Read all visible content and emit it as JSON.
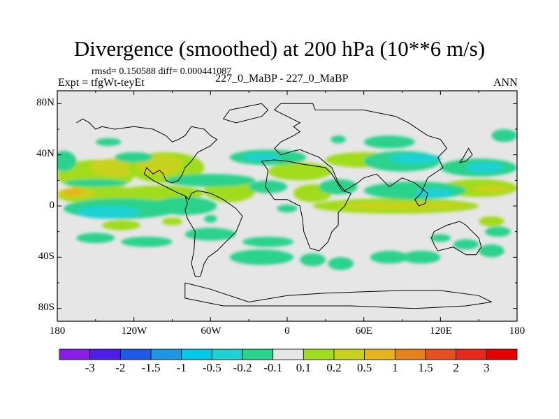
{
  "title": "Divergence (smoothed) at 200 hPa (10**6 m/s)",
  "stats": "rmsd= 0.150588 diff= 0.000441087",
  "expt_label": "Expt = tfgWt-teyEt",
  "subtitle": "227_0_MaBP - 227_0_MaBP",
  "season": "ANN",
  "lat_labels": [
    "80N",
    "40N",
    "0",
    "40S",
    "80S"
  ],
  "lon_labels": [
    "180",
    "120W",
    "60W",
    "0",
    "60E",
    "120E",
    "180"
  ],
  "colorbar": {
    "labels": [
      "-3",
      "-2",
      "-1.5",
      "-1",
      "-0.5",
      "-0.2",
      "-0.1",
      "0.1",
      "0.2",
      "0.5",
      "1",
      "1.5",
      "2",
      "3"
    ],
    "colors": [
      "#8a1ee6",
      "#4e1ee6",
      "#1e5ae6",
      "#1e96e6",
      "#00c8e6",
      "#1ed2d2",
      "#2ad28c",
      "#e6e6e6",
      "#a0dc1e",
      "#c8d21e",
      "#e6b41e",
      "#e6821e",
      "#e6501e",
      "#e6281e",
      "#e60000"
    ]
  },
  "map": {
    "background": "#e6e6e6",
    "colors": {
      "neg_weak": "#2ad28c",
      "neg_mid": "#1ed2d2",
      "neg_strong": "#00c8e6",
      "pos_weak": "#a0dc1e",
      "pos_mid": "#c8d21e",
      "pos_strong": "#e6b41e"
    },
    "patches": [
      {
        "level": "pos_weak",
        "lon": -150,
        "lat": 24,
        "rlon": 30,
        "rlat": 12
      },
      {
        "level": "pos_mid",
        "lon": -135,
        "lat": 30,
        "rlon": 20,
        "rlat": 7
      },
      {
        "level": "pos_weak",
        "lon": -95,
        "lat": 30,
        "rlon": 30,
        "rlat": 12
      },
      {
        "level": "pos_mid",
        "lon": -100,
        "lat": 32,
        "rlon": 18,
        "rlat": 8
      },
      {
        "level": "pos_weak",
        "lon": -140,
        "lat": 8,
        "rlon": 40,
        "rlat": 7
      },
      {
        "level": "pos_mid",
        "lon": -165,
        "lat": 10,
        "rlon": 15,
        "rlat": 4
      },
      {
        "level": "pos_strong",
        "lon": -168,
        "lat": 11,
        "rlon": 8,
        "rlat": 3
      },
      {
        "level": "pos_weak",
        "lon": -100,
        "lat": 10,
        "rlon": 35,
        "rlat": 6
      },
      {
        "level": "pos_weak",
        "lon": -45,
        "lat": 12,
        "rlon": 20,
        "rlat": 9
      },
      {
        "level": "pos_weak",
        "lon": 10,
        "lat": 27,
        "rlon": 25,
        "rlat": 7
      },
      {
        "level": "pos_weak",
        "lon": 20,
        "lat": 10,
        "rlon": 15,
        "rlat": 7
      },
      {
        "level": "pos_weak",
        "lon": 85,
        "lat": 0,
        "rlon": 65,
        "rlat": 6
      },
      {
        "level": "pos_mid",
        "lon": 90,
        "lat": 0,
        "rlon": 50,
        "rlat": 3
      },
      {
        "level": "pos_weak",
        "lon": 150,
        "lat": 14,
        "rlon": 30,
        "rlat": 7
      },
      {
        "level": "pos_mid",
        "lon": 160,
        "lat": 13,
        "rlon": 15,
        "rlat": 3
      },
      {
        "level": "pos_weak",
        "lon": 160,
        "lat": -12,
        "rlon": 10,
        "rlat": 4
      },
      {
        "level": "pos_weak",
        "lon": -90,
        "lat": -12,
        "rlon": 8,
        "rlat": 3
      },
      {
        "level": "pos_weak",
        "lon": -130,
        "lat": -15,
        "rlon": 15,
        "rlat": 4
      },
      {
        "level": "pos_weak",
        "lon": 60,
        "lat": 36,
        "rlon": 30,
        "rlat": 6
      },
      {
        "level": "neg_weak",
        "lon": -130,
        "lat": -2,
        "rlon": 45,
        "rlat": 8
      },
      {
        "level": "neg_mid",
        "lon": -140,
        "lat": -5,
        "rlon": 25,
        "rlat": 5
      },
      {
        "level": "neg_strong",
        "lon": -80,
        "lat": -2,
        "rlon": 15,
        "rlat": 4
      },
      {
        "level": "neg_weak",
        "lon": -80,
        "lat": 0,
        "rlon": 25,
        "rlat": 7
      },
      {
        "level": "neg_weak",
        "lon": -150,
        "lat": -25,
        "rlon": 15,
        "rlat": 4
      },
      {
        "level": "neg_weak",
        "lon": -110,
        "lat": -28,
        "rlon": 20,
        "rlat": 4
      },
      {
        "level": "neg_weak",
        "lon": -60,
        "lat": -22,
        "rlon": 20,
        "rlat": 5
      },
      {
        "level": "neg_weak",
        "lon": -15,
        "lat": -28,
        "rlon": 20,
        "rlat": 4
      },
      {
        "level": "neg_weak",
        "lon": -20,
        "lat": -40,
        "rlon": 25,
        "rlat": 6
      },
      {
        "level": "neg_weak",
        "lon": 20,
        "lat": -42,
        "rlon": 10,
        "rlat": 5
      },
      {
        "level": "neg_weak",
        "lon": 42,
        "lat": -45,
        "rlon": 10,
        "rlat": 5
      },
      {
        "level": "neg_weak",
        "lon": 80,
        "lat": -40,
        "rlon": 15,
        "rlat": 5
      },
      {
        "level": "neg_weak",
        "lon": 105,
        "lat": -40,
        "rlon": 15,
        "rlat": 5
      },
      {
        "level": "neg_weak",
        "lon": 140,
        "lat": -30,
        "rlon": 10,
        "rlat": 4
      },
      {
        "level": "neg_weak",
        "lon": 160,
        "lat": -35,
        "rlon": 10,
        "rlat": 5
      },
      {
        "level": "neg_weak",
        "lon": 165,
        "lat": -20,
        "rlon": 10,
        "rlat": 4
      },
      {
        "level": "neg_weak",
        "lon": 120,
        "lat": -25,
        "rlon": 8,
        "rlat": 3
      },
      {
        "level": "neg_weak",
        "lon": -175,
        "lat": 35,
        "rlon": 10,
        "rlat": 8
      },
      {
        "level": "neg_weak",
        "lon": -120,
        "lat": 38,
        "rlon": 15,
        "rlat": 4
      },
      {
        "level": "neg_weak",
        "lon": -150,
        "lat": 18,
        "rlon": 25,
        "rlat": 3
      },
      {
        "level": "neg_weak",
        "lon": -60,
        "lat": 20,
        "rlon": 35,
        "rlat": 5
      },
      {
        "level": "neg_weak",
        "lon": -15,
        "lat": 38,
        "rlon": 30,
        "rlat": 6
      },
      {
        "level": "neg_mid",
        "lon": -20,
        "lat": 38,
        "rlon": 15,
        "rlat": 3
      },
      {
        "level": "neg_weak",
        "lon": -15,
        "lat": 15,
        "rlon": 15,
        "rlat": 5
      },
      {
        "level": "neg_weak",
        "lon": 40,
        "lat": 15,
        "rlon": 15,
        "rlat": 6
      },
      {
        "level": "neg_weak",
        "lon": 90,
        "lat": 35,
        "rlon": 30,
        "rlat": 8
      },
      {
        "level": "neg_mid",
        "lon": 100,
        "lat": 37,
        "rlon": 20,
        "rlat": 4
      },
      {
        "level": "neg_weak",
        "lon": 100,
        "lat": 12,
        "rlon": 40,
        "rlat": 7
      },
      {
        "level": "neg_mid",
        "lon": 115,
        "lat": 10,
        "rlon": 15,
        "rlat": 4
      },
      {
        "level": "neg_weak",
        "lon": 150,
        "lat": 30,
        "rlon": 30,
        "rlat": 7
      },
      {
        "level": "neg_mid",
        "lon": 155,
        "lat": 30,
        "rlon": 15,
        "rlat": 4
      },
      {
        "level": "neg_weak",
        "lon": 170,
        "lat": 55,
        "rlon": 10,
        "rlat": 5
      },
      {
        "level": "neg_weak",
        "lon": 40,
        "lat": 52,
        "rlon": 6,
        "rlat": 3
      },
      {
        "level": "neg_weak",
        "lon": 80,
        "lat": 50,
        "rlon": 20,
        "rlat": 5
      },
      {
        "level": "neg_weak",
        "lon": -60,
        "lat": -10,
        "rlon": 5,
        "rlat": 3
      },
      {
        "level": "neg_weak",
        "lon": -140,
        "lat": 50,
        "rlon": 10,
        "rlat": 3
      },
      {
        "level": "neg_weak",
        "lon": 0,
        "lat": -2,
        "rlon": 8,
        "rlat": 3
      }
    ],
    "outlines": [
      [
        [
          -5,
          80
        ],
        [
          20,
          80
        ],
        [
          22,
          75
        ],
        [
          60,
          75
        ],
        [
          75,
          72
        ],
        [
          85,
          70
        ],
        [
          95,
          65
        ],
        [
          110,
          55
        ],
        [
          120,
          52
        ],
        [
          125,
          45
        ],
        [
          118,
          38
        ],
        [
          122,
          30
        ],
        [
          110,
          22
        ],
        [
          105,
          10
        ],
        [
          100,
          5
        ],
        [
          103,
          0
        ],
        [
          108,
          2
        ],
        [
          110,
          10
        ],
        [
          100,
          18
        ],
        [
          90,
          22
        ],
        [
          80,
          15
        ],
        [
          75,
          20
        ],
        [
          70,
          25
        ],
        [
          60,
          22
        ],
        [
          55,
          18
        ],
        [
          45,
          12
        ],
        [
          40,
          18
        ],
        [
          35,
          30
        ],
        [
          32,
          32
        ],
        [
          25,
          38
        ],
        [
          20,
          40
        ],
        [
          10,
          44
        ],
        [
          5,
          43
        ],
        [
          -5,
          40
        ],
        [
          -10,
          45
        ],
        [
          -5,
          50
        ],
        [
          5,
          55
        ],
        [
          10,
          58
        ],
        [
          5,
          62
        ],
        [
          10,
          65
        ],
        [
          0,
          70
        ],
        [
          -10,
          75
        ],
        [
          -5,
          80
        ]
      ],
      [
        [
          -20,
          35
        ],
        [
          -15,
          28
        ],
        [
          -17,
          15
        ],
        [
          -10,
          5
        ],
        [
          0,
          5
        ],
        [
          10,
          0
        ],
        [
          12,
          -10
        ],
        [
          13,
          -20
        ],
        [
          18,
          -33
        ],
        [
          25,
          -35
        ],
        [
          32,
          -28
        ],
        [
          35,
          -20
        ],
        [
          40,
          -15
        ],
        [
          40,
          -5
        ],
        [
          45,
          0
        ],
        [
          50,
          10
        ],
        [
          43,
          12
        ],
        [
          35,
          25
        ],
        [
          30,
          30
        ],
        [
          10,
          33
        ],
        [
          0,
          35
        ],
        [
          -10,
          36
        ],
        [
          -20,
          35
        ]
      ],
      [
        [
          -45,
          75
        ],
        [
          -20,
          80
        ],
        [
          -15,
          75
        ],
        [
          -20,
          70
        ],
        [
          -40,
          65
        ],
        [
          -50,
          68
        ],
        [
          -45,
          75
        ]
      ],
      [
        [
          -80,
          30
        ],
        [
          -75,
          35
        ],
        [
          -70,
          42
        ],
        [
          -60,
          47
        ],
        [
          -55,
          52
        ],
        [
          -60,
          55
        ],
        [
          -65,
          60
        ],
        [
          -75,
          62
        ],
        [
          -80,
          55
        ],
        [
          -85,
          52
        ],
        [
          -90,
          50
        ],
        [
          -95,
          55
        ],
        [
          -105,
          60
        ],
        [
          -120,
          62
        ],
        [
          -135,
          60
        ],
        [
          -145,
          62
        ],
        [
          -150,
          60
        ],
        [
          -155,
          65
        ],
        [
          -160,
          68
        ],
        [
          -165,
          65
        ]
      ],
      [
        [
          -80,
          30
        ],
        [
          -82,
          25
        ],
        [
          -85,
          20
        ],
        [
          -90,
          18
        ],
        [
          -95,
          20
        ],
        [
          -97,
          25
        ],
        [
          -100,
          28
        ],
        [
          -105,
          25
        ],
        [
          -110,
          30
        ],
        [
          -112,
          25
        ],
        [
          -105,
          20
        ],
        [
          -95,
          15
        ],
        [
          -85,
          10
        ],
        [
          -80,
          8
        ],
        [
          -77,
          5
        ],
        [
          -75,
          10
        ],
        [
          -70,
          12
        ],
        [
          -60,
          10
        ],
        [
          -50,
          5
        ],
        [
          -40,
          -2
        ],
        [
          -35,
          -8
        ],
        [
          -40,
          -20
        ],
        [
          -48,
          -28
        ],
        [
          -55,
          -35
        ],
        [
          -62,
          -40
        ],
        [
          -65,
          -45
        ],
        [
          -68,
          -55
        ],
        [
          -72,
          -55
        ],
        [
          -75,
          -45
        ],
        [
          -73,
          -35
        ],
        [
          -72,
          -20
        ],
        [
          -78,
          -10
        ],
        [
          -80,
          -3
        ],
        [
          -78,
          2
        ],
        [
          -80,
          8
        ]
      ],
      [
        [
          115,
          -20
        ],
        [
          125,
          -15
        ],
        [
          135,
          -12
        ],
        [
          140,
          -15
        ],
        [
          145,
          -20
        ],
        [
          150,
          -25
        ],
        [
          152,
          -32
        ],
        [
          148,
          -38
        ],
        [
          140,
          -38
        ],
        [
          130,
          -32
        ],
        [
          118,
          -35
        ],
        [
          115,
          -30
        ],
        [
          113,
          -25
        ],
        [
          115,
          -20
        ]
      ],
      [
        [
          140,
          35
        ],
        [
          145,
          40
        ],
        [
          142,
          45
        ],
        [
          138,
          38
        ],
        [
          135,
          34
        ],
        [
          140,
          35
        ]
      ],
      [
        [
          -80,
          -60
        ],
        [
          -60,
          -65
        ],
        [
          -30,
          -75
        ],
        [
          0,
          -70
        ],
        [
          30,
          -68
        ],
        [
          60,
          -67
        ],
        [
          90,
          -66
        ],
        [
          120,
          -66
        ],
        [
          150,
          -70
        ],
        [
          160,
          -75
        ],
        [
          140,
          -78
        ],
        [
          100,
          -80
        ],
        [
          50,
          -78
        ],
        [
          0,
          -78
        ],
        [
          -50,
          -78
        ],
        [
          -80,
          -72
        ],
        [
          -80,
          -60
        ]
      ]
    ]
  }
}
